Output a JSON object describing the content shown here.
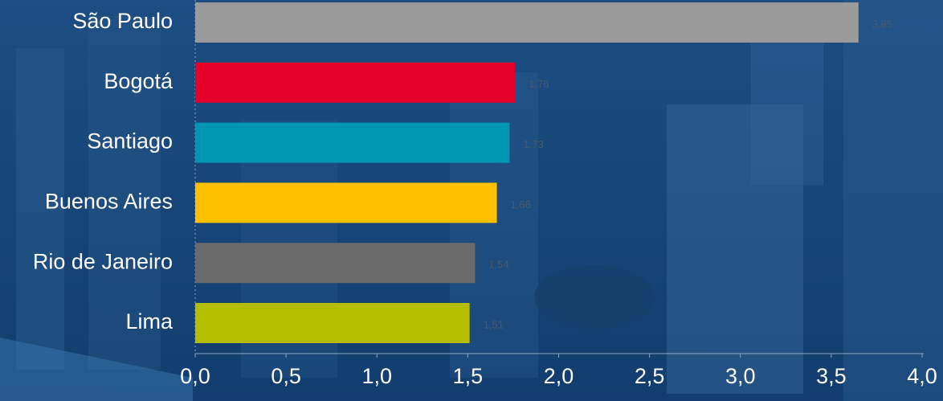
{
  "chart_data": {
    "type": "bar",
    "orientation": "horizontal",
    "categories": [
      "São Paulo",
      "Bogotá",
      "Santiago",
      "Buenos Aires",
      "Rio de Janeiro",
      "Lima"
    ],
    "values": [
      3.65,
      1.76,
      1.73,
      1.66,
      1.54,
      1.51
    ],
    "value_labels": [
      "3,65",
      "1,76",
      "1,73",
      "1,66",
      "1,54",
      "1,51"
    ],
    "colors": [
      "#9b9b9b",
      "#e4002b",
      "#0097b2",
      "#ffc000",
      "#6b6b6b",
      "#b5bd00"
    ],
    "xlim": [
      0,
      4
    ],
    "xticks": [
      {
        "value": 0,
        "label": "0,0"
      },
      {
        "value": 0.5,
        "label": "0,5"
      },
      {
        "value": 1,
        "label": "1,0"
      },
      {
        "value": 1.5,
        "label": "1,5"
      },
      {
        "value": 2,
        "label": "2,0"
      },
      {
        "value": 2.5,
        "label": "2,5"
      },
      {
        "value": 3,
        "label": "3,0"
      },
      {
        "value": 3.5,
        "label": "3,5"
      },
      {
        "value": 4,
        "label": "4,0"
      }
    ],
    "grid": false
  }
}
